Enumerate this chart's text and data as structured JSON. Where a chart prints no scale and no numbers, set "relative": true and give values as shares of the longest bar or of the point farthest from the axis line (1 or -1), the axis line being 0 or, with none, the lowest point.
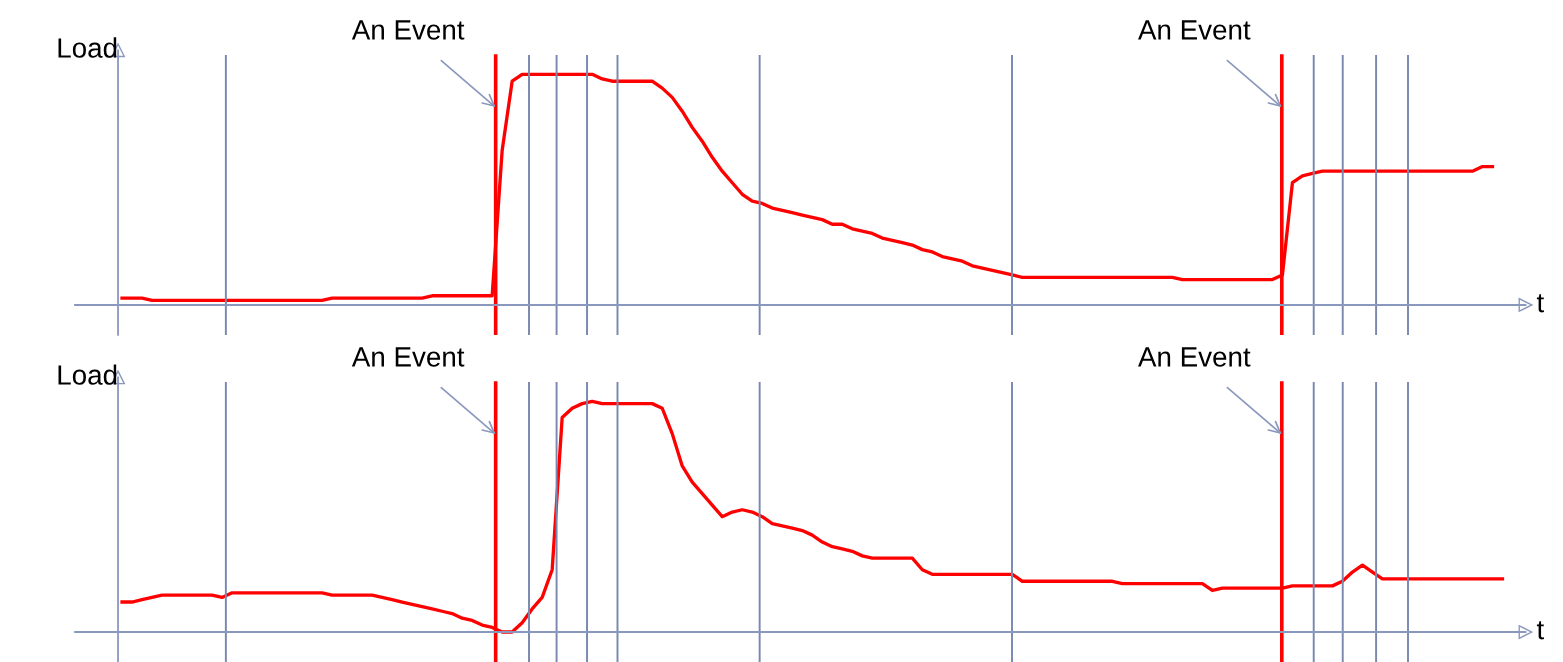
{
  "chart_data": [
    {
      "type": "line",
      "ylabel": "Load",
      "xlabel": "t",
      "relative": true,
      "marker": "none",
      "line_style": "solid",
      "annotations": [
        "An Event",
        "An Event"
      ],
      "categories": [
        null,
        null,
        null,
        null,
        null,
        null,
        null,
        null,
        null,
        null,
        null,
        null,
        null,
        null,
        null,
        null,
        null,
        null,
        null,
        null,
        null,
        null,
        null,
        null,
        null,
        null,
        null,
        null,
        null,
        null,
        null,
        null,
        null,
        null,
        null,
        null,
        null,
        null,
        null,
        null,
        null,
        null,
        null,
        null,
        null,
        null,
        null,
        null,
        null,
        null,
        null,
        null,
        null,
        null,
        null,
        null,
        null,
        null,
        null,
        null,
        null,
        null,
        null,
        null,
        null,
        null,
        null,
        null,
        null,
        null,
        null,
        null,
        null,
        null,
        null,
        null,
        null,
        null,
        null,
        null,
        null,
        null,
        null,
        null,
        null,
        null,
        null,
        null,
        null,
        null,
        null,
        null,
        null,
        null,
        null,
        null,
        null,
        null,
        null,
        null,
        null,
        null,
        null,
        null,
        null,
        null,
        null,
        null,
        null,
        null,
        null,
        null,
        null,
        null,
        null,
        null,
        null,
        null,
        null,
        null,
        null,
        null,
        null,
        null,
        null,
        null,
        null,
        null,
        null,
        null,
        null,
        null,
        null,
        null,
        null,
        null,
        null,
        null,
        null,
        null,
        null
      ],
      "series": [
        {
          "color": "#ff0000",
          "values": [
            0.03,
            0.03,
            0.03,
            0.02,
            0.02,
            0.02,
            0.02,
            0.02,
            0.02,
            0.02,
            0.02,
            0.02,
            0.02,
            0.02,
            0.02,
            0.02,
            0.02,
            0.02,
            0.02,
            0.02,
            0.02,
            0.03,
            0.03,
            0.03,
            0.03,
            0.03,
            0.03,
            0.03,
            0.03,
            0.03,
            0.03,
            0.04,
            0.04,
            0.04,
            0.04,
            0.04,
            0.04,
            0.04,
            0.67,
            0.97,
            1.0,
            1.0,
            1.0,
            1.0,
            1.0,
            1.0,
            1.0,
            1.0,
            0.98,
            0.97,
            0.97,
            0.97,
            0.97,
            0.97,
            0.94,
            0.9,
            0.84,
            0.77,
            0.71,
            0.64,
            0.58,
            0.53,
            0.48,
            0.45,
            0.44,
            0.42,
            0.41,
            0.4,
            0.39,
            0.38,
            0.37,
            0.35,
            0.35,
            0.33,
            0.32,
            0.31,
            0.29,
            0.28,
            0.27,
            0.26,
            0.24,
            0.23,
            0.21,
            0.2,
            0.19,
            0.17,
            0.16,
            0.15,
            0.14,
            0.13,
            0.12,
            0.12,
            0.12,
            0.12,
            0.12,
            0.12,
            0.12,
            0.12,
            0.12,
            0.12,
            0.12,
            0.12,
            0.12,
            0.12,
            0.12,
            0.12,
            0.11,
            0.11,
            0.11,
            0.11,
            0.11,
            0.11,
            0.11,
            0.11,
            0.11,
            0.11,
            0.13,
            0.53,
            0.56,
            0.57,
            0.58,
            0.58,
            0.58,
            0.58,
            0.58,
            0.58,
            0.58,
            0.58,
            0.58,
            0.58,
            0.58,
            0.58,
            0.58,
            0.58,
            0.58,
            0.58,
            0.6,
            0.6,
            null,
            null,
            null
          ]
        }
      ]
    },
    {
      "type": "line",
      "ylabel": "Load",
      "xlabel": "t",
      "relative": true,
      "marker": "none",
      "line_style": "solid",
      "annotations": [
        "An Event",
        "An Event"
      ],
      "categories": [
        null,
        null,
        null,
        null,
        null,
        null,
        null,
        null,
        null,
        null,
        null,
        null,
        null,
        null,
        null,
        null,
        null,
        null,
        null,
        null,
        null,
        null,
        null,
        null,
        null,
        null,
        null,
        null,
        null,
        null,
        null,
        null,
        null,
        null,
        null,
        null,
        null,
        null,
        null,
        null,
        null,
        null,
        null,
        null,
        null,
        null,
        null,
        null,
        null,
        null,
        null,
        null,
        null,
        null,
        null,
        null,
        null,
        null,
        null,
        null,
        null,
        null,
        null,
        null,
        null,
        null,
        null,
        null,
        null,
        null,
        null,
        null,
        null,
        null,
        null,
        null,
        null,
        null,
        null,
        null,
        null,
        null,
        null,
        null,
        null,
        null,
        null,
        null,
        null,
        null,
        null,
        null,
        null,
        null,
        null,
        null,
        null,
        null,
        null,
        null,
        null,
        null,
        null,
        null,
        null,
        null,
        null,
        null,
        null,
        null,
        null,
        null,
        null,
        null,
        null,
        null,
        null,
        null,
        null,
        null,
        null,
        null,
        null,
        null,
        null,
        null,
        null,
        null,
        null,
        null,
        null,
        null,
        null,
        null,
        null,
        null,
        null,
        null,
        null,
        null,
        null
      ],
      "series": [
        {
          "color": "#ff0000",
          "values": [
            0.13,
            0.13,
            0.14,
            0.15,
            0.16,
            0.16,
            0.16,
            0.16,
            0.16,
            0.16,
            0.15,
            0.17,
            0.17,
            0.17,
            0.17,
            0.17,
            0.17,
            0.17,
            0.17,
            0.17,
            0.17,
            0.16,
            0.16,
            0.16,
            0.16,
            0.16,
            0.15,
            0.14,
            0.13,
            0.12,
            0.11,
            0.1,
            0.09,
            0.08,
            0.06,
            0.05,
            0.03,
            0.02,
            0,
            0,
            0.04,
            0.1,
            0.15,
            0.27,
            0.93,
            0.97,
            0.99,
            1.0,
            0.99,
            0.99,
            0.99,
            0.99,
            0.99,
            0.99,
            0.97,
            0.86,
            0.72,
            0.65,
            0.6,
            0.55,
            0.5,
            0.52,
            0.53,
            0.52,
            0.5,
            0.47,
            0.46,
            0.45,
            0.44,
            0.42,
            0.39,
            0.37,
            0.36,
            0.35,
            0.33,
            0.32,
            0.32,
            0.32,
            0.32,
            0.32,
            0.27,
            0.25,
            0.25,
            0.25,
            0.25,
            0.25,
            0.25,
            0.25,
            0.25,
            0.25,
            0.22,
            0.22,
            0.22,
            0.22,
            0.22,
            0.22,
            0.22,
            0.22,
            0.22,
            0.22,
            0.21,
            0.21,
            0.21,
            0.21,
            0.21,
            0.21,
            0.21,
            0.21,
            0.21,
            0.18,
            0.19,
            0.19,
            0.19,
            0.19,
            0.19,
            0.19,
            0.19,
            0.2,
            0.2,
            0.2,
            0.2,
            0.2,
            0.22,
            0.26,
            0.29,
            0.26,
            0.23,
            0.23,
            0.23,
            0.23,
            0.23,
            0.23,
            0.23,
            0.23,
            0.23,
            0.23,
            0.23,
            0.23,
            0.23,
            null,
            null
          ]
        }
      ]
    }
  ]
}
